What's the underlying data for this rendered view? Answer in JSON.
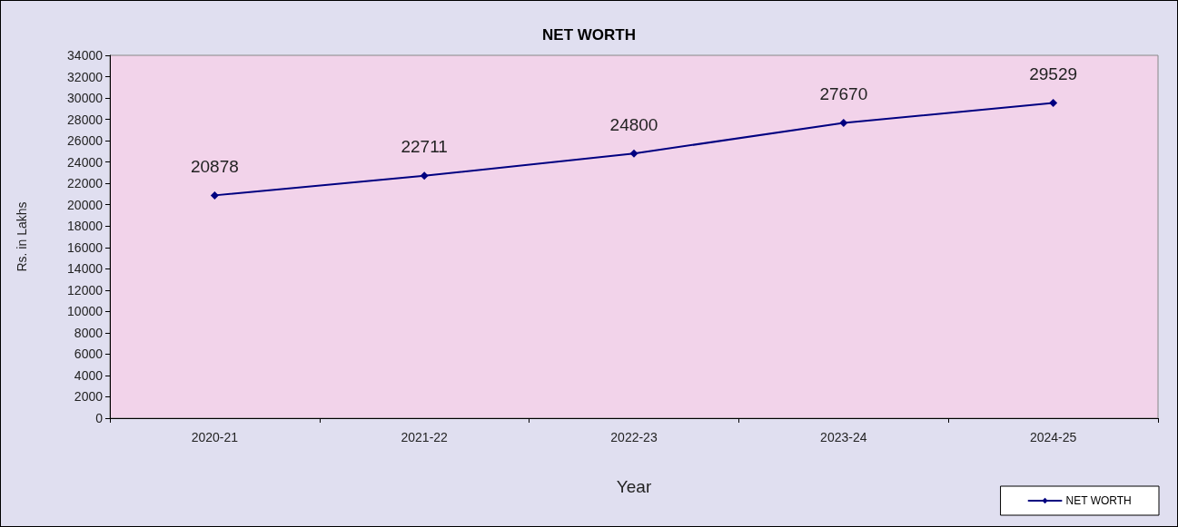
{
  "chart_data": {
    "type": "line",
    "title": "NET WORTH",
    "xlabel": "Year",
    "ylabel": "Rs. in Lakhs",
    "categories": [
      "2020-21",
      "2021-22",
      "2022-23",
      "2023-24",
      "2024-25"
    ],
    "series": [
      {
        "name": "NET WORTH",
        "color": "#000080",
        "values": [
          20878,
          22711,
          24800,
          27670,
          29529
        ]
      }
    ],
    "ylim": [
      0,
      34000
    ],
    "yticks": [
      0,
      2000,
      4000,
      6000,
      8000,
      10000,
      12000,
      14000,
      16000,
      18000,
      20000,
      22000,
      24000,
      26000,
      28000,
      30000,
      32000,
      34000
    ],
    "grid": false,
    "legend": "bottom right",
    "marker": "diamond",
    "line_style": "solid",
    "data_labels": true
  }
}
